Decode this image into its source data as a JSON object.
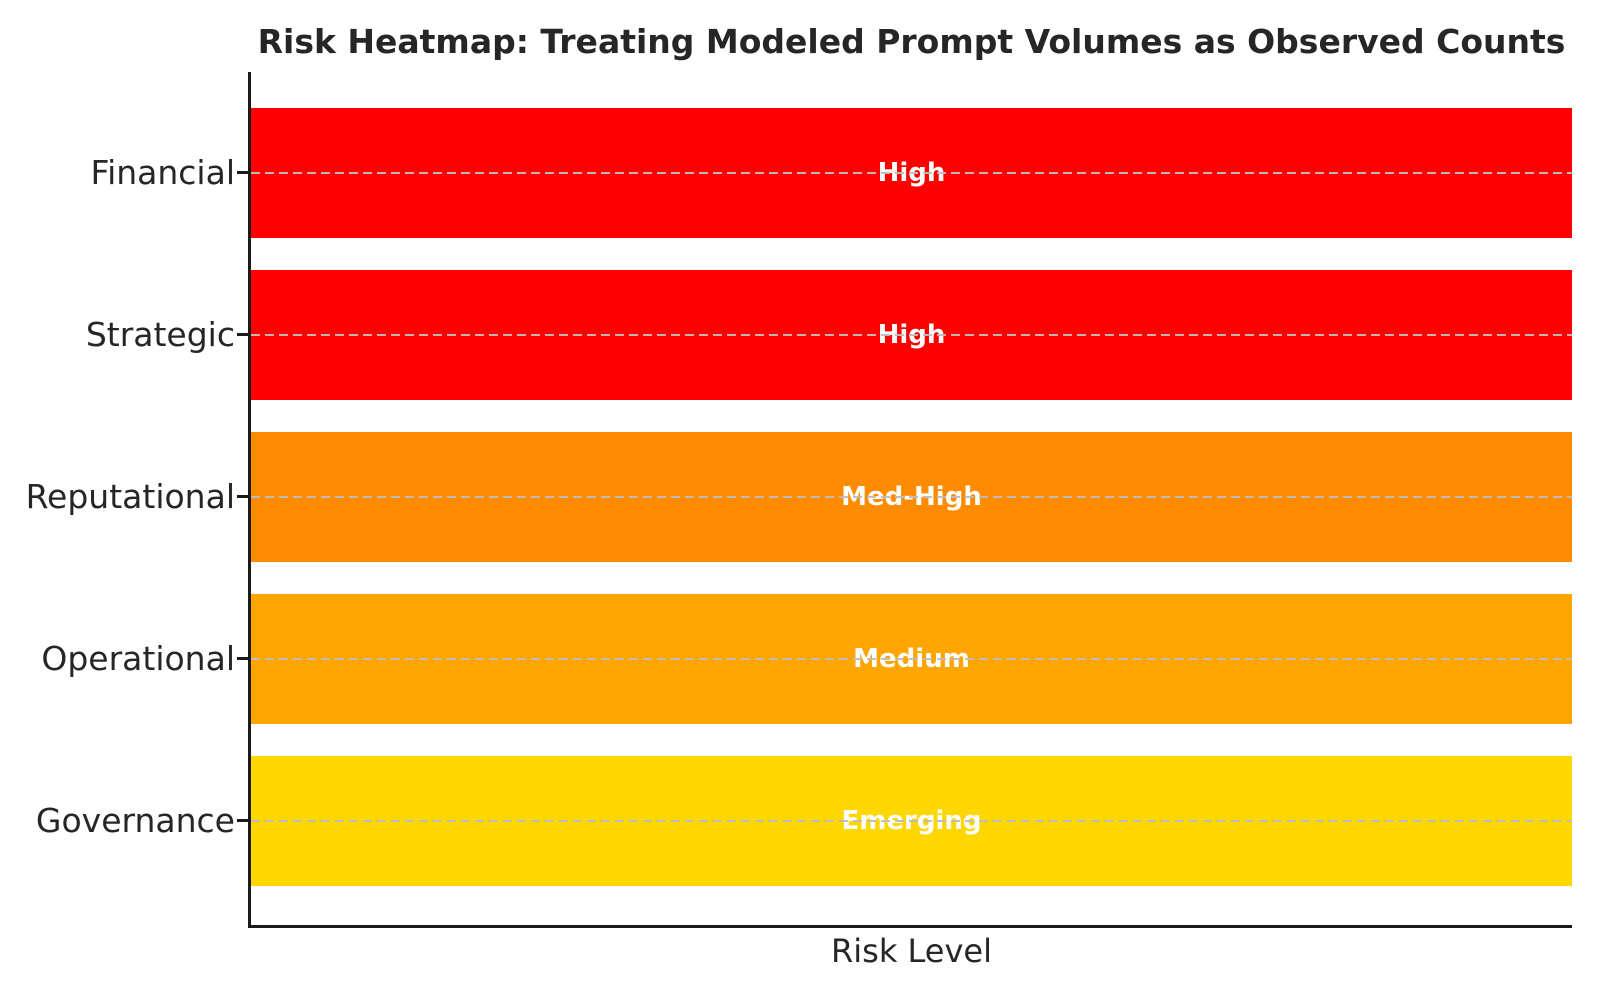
{
  "style": {
    "background": "#ffffff",
    "text_color": "#262626",
    "axis_color": "#1a1a1a",
    "grid_color": "#bdbdbd",
    "bar_label_color": "#ffffff"
  },
  "chart_data": {
    "type": "bar",
    "orientation": "horizontal",
    "title": "Risk Heatmap: Treating Modeled Prompt Volumes as Observed Counts",
    "xlabel": "Risk Level",
    "ylabel": "",
    "categories": [
      "Financial",
      "Strategic",
      "Reputational",
      "Operational",
      "Governance"
    ],
    "series": [
      {
        "name": "Risk Level",
        "values": [
          1.0,
          1.0,
          1.0,
          1.0,
          1.0
        ]
      }
    ],
    "xlim": [
      0,
      1
    ],
    "grid": "horizontal dashed line at each category center, drawn over bars",
    "legend_position": "none",
    "x_tick_labels": [],
    "rows": [
      {
        "category": "Financial",
        "value_label": "High",
        "value": 1.0,
        "color": "#ff0000"
      },
      {
        "category": "Strategic",
        "value_label": "High",
        "value": 1.0,
        "color": "#ff0000"
      },
      {
        "category": "Reputational",
        "value_label": "Med-High",
        "value": 1.0,
        "color": "#ff8c00"
      },
      {
        "category": "Operational",
        "value_label": "Medium",
        "value": 1.0,
        "color": "#ffa500"
      },
      {
        "category": "Governance",
        "value_label": "Emerging",
        "value": 1.0,
        "color": "#ffd700"
      }
    ]
  }
}
